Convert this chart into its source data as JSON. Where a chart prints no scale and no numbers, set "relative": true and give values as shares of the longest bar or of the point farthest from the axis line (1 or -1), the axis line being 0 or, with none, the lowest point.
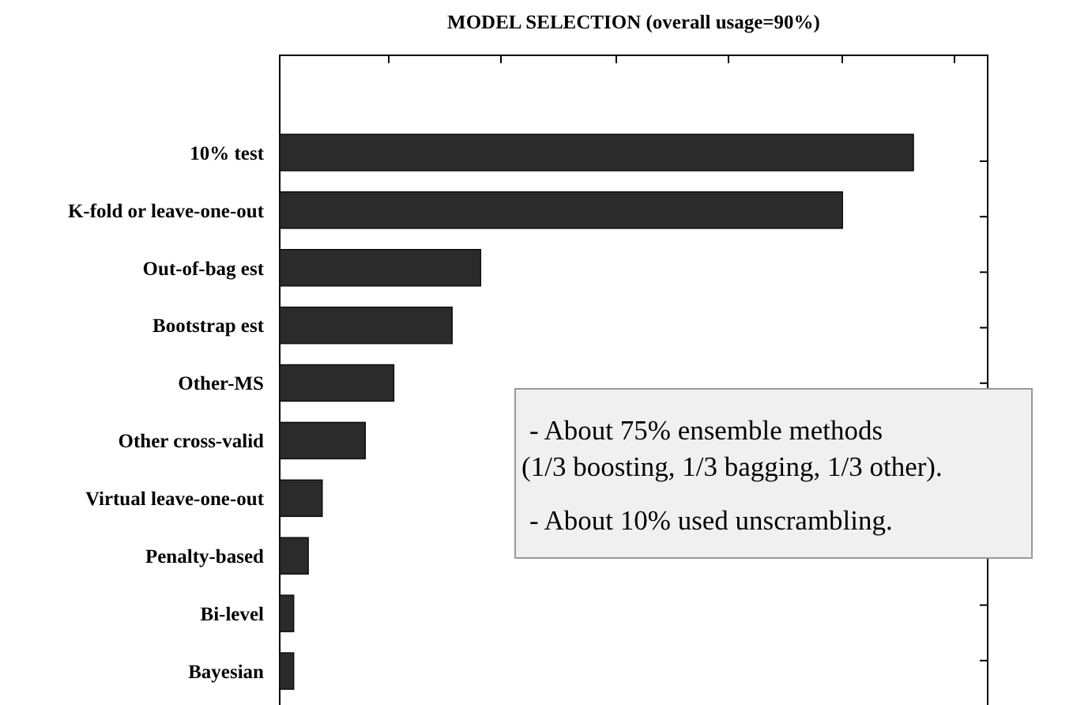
{
  "chart_data": {
    "type": "bar",
    "orientation": "horizontal",
    "relative": true,
    "title": "MODEL SELECTION (overall usage=90%)",
    "categories": [
      "10% test",
      "K-fold or leave-one-out",
      "Out-of-bag est",
      "Bootstrap est",
      "Other-MS",
      "Other cross-valid",
      "Virtual leave-one-out",
      "Penalty-based",
      "Bi-level",
      "Bayesian"
    ],
    "values": [
      1,
      0.888,
      0.317,
      0.272,
      0.18,
      0.135,
      0.067,
      0.045,
      0.022,
      0.022
    ],
    "color": "#2b2b2b",
    "annotations": [
      "- About 75% ensemble methods (1/3 boosting, 1/3 bagging, 1/3 other).",
      "- About 10% used unscrambling."
    ]
  }
}
